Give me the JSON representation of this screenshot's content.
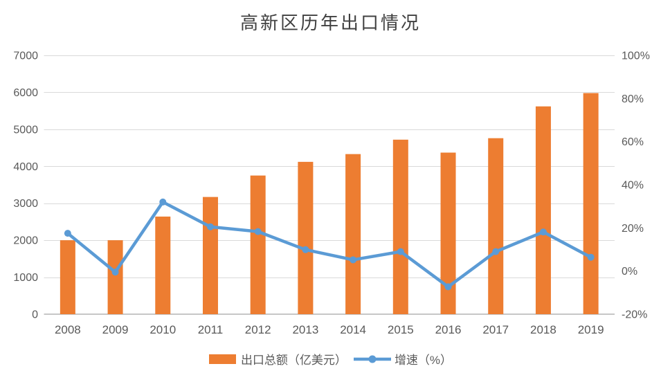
{
  "chart_data": {
    "type": "combo-bar-line",
    "title": "高新区历年出口情况",
    "categories": [
      "2008",
      "2009",
      "2010",
      "2011",
      "2012",
      "2013",
      "2014",
      "2015",
      "2016",
      "2017",
      "2018",
      "2019"
    ],
    "series": [
      {
        "name": "出口总额（亿美元）",
        "type": "bar",
        "axis": "left",
        "color": "#ED7D31",
        "values": [
          2000,
          2000,
          2640,
          3170,
          3750,
          4120,
          4330,
          4720,
          4370,
          4760,
          5620,
          5980
        ]
      },
      {
        "name": "增速（%）",
        "type": "line",
        "axis": "right",
        "color": "#5B9BD5",
        "values": [
          17.5,
          -0.5,
          32.0,
          20.5,
          18.3,
          9.9,
          5.2,
          9.0,
          -7.3,
          9.0,
          18.1,
          6.4
        ]
      }
    ],
    "left_axis": {
      "min": 0,
      "max": 7000,
      "step": 1000,
      "tick_labels": [
        "0",
        "1000",
        "2000",
        "3000",
        "4000",
        "5000",
        "6000",
        "7000"
      ]
    },
    "right_axis": {
      "min": -20,
      "max": 100,
      "step": 20,
      "tick_labels": [
        "-20%",
        "0%",
        "20%",
        "40%",
        "60%",
        "80%",
        "100%"
      ]
    },
    "grid": true,
    "legend_position": "bottom"
  },
  "colors": {
    "bar": "#ED7D31",
    "line": "#5B9BD5",
    "gridline": "#D9D9D9",
    "axis_line": "#C6C6C6",
    "text": "#595959",
    "title": "#404040",
    "background": "#FFFFFF"
  }
}
